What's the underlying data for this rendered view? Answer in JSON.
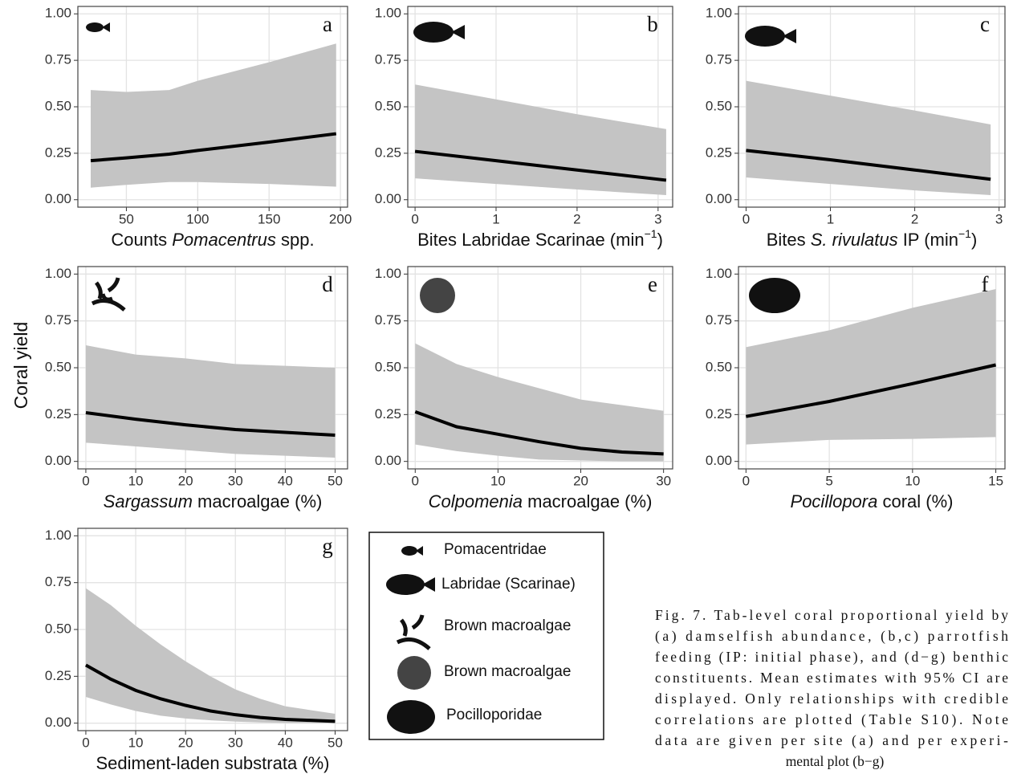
{
  "ylabel": "Coral yield",
  "chart_data": [
    {
      "type": "line",
      "label": "a",
      "xlabel": [
        {
          "text": "Counts "
        },
        {
          "text": "Pomacentrus",
          "style": "italic"
        },
        {
          "text": " spp."
        }
      ],
      "x": [
        25,
        50,
        80,
        100,
        150,
        197
      ],
      "values": [
        0.21,
        0.225,
        0.245,
        0.265,
        0.31,
        0.355
      ],
      "lower": [
        0.065,
        0.08,
        0.095,
        0.095,
        0.085,
        0.07
      ],
      "upper": [
        0.59,
        0.58,
        0.59,
        0.64,
        0.74,
        0.84
      ],
      "color": "#000000",
      "band_color": "#c4c4c4",
      "grid": true,
      "xlim": [
        16,
        205
      ],
      "xticks": [
        50,
        100,
        150,
        200
      ],
      "ylim": [
        -0.04,
        1.04
      ],
      "yticks": [
        {
          "value": 0,
          "label": "0.00"
        },
        {
          "value": 0.25,
          "label": "0.25"
        },
        {
          "value": 0.5,
          "label": "0.50"
        },
        {
          "value": 0.75,
          "label": "0.75"
        },
        {
          "value": 1,
          "label": "1.00"
        }
      ]
    },
    {
      "type": "line",
      "label": "b",
      "xlabel": [
        {
          "text": "Bites Labridae Scarinae (min"
        },
        {
          "text": "−1",
          "style": "sup"
        },
        {
          "text": ")"
        }
      ],
      "x": [
        0,
        1,
        2,
        3.1
      ],
      "values": [
        0.26,
        0.21,
        0.16,
        0.105
      ],
      "lower": [
        0.115,
        0.085,
        0.055,
        0.025
      ],
      "upper": [
        0.62,
        0.54,
        0.46,
        0.38
      ],
      "color": "#000000",
      "band_color": "#c4c4c4",
      "grid": true,
      "xlim": [
        -0.09,
        3.18
      ],
      "xticks": [
        0,
        1,
        2,
        3
      ],
      "ylim": [
        -0.04,
        1.04
      ],
      "yticks": [
        {
          "value": 0,
          "label": "0.00"
        },
        {
          "value": 0.25,
          "label": "0.25"
        },
        {
          "value": 0.5,
          "label": "0.50"
        },
        {
          "value": 0.75,
          "label": "0.75"
        },
        {
          "value": 1,
          "label": "1.00"
        }
      ]
    },
    {
      "type": "line",
      "label": "c",
      "xlabel": [
        {
          "text": "Bites "
        },
        {
          "text": "S. rivulatus",
          "style": "italic"
        },
        {
          "text": " IP (min"
        },
        {
          "text": "−1",
          "style": "sup"
        },
        {
          "text": ")"
        }
      ],
      "x": [
        0,
        1,
        2,
        2.9
      ],
      "values": [
        0.265,
        0.215,
        0.16,
        0.11
      ],
      "lower": [
        0.12,
        0.085,
        0.05,
        0.025
      ],
      "upper": [
        0.64,
        0.56,
        0.48,
        0.405
      ],
      "color": "#000000",
      "band_color": "#c4c4c4",
      "grid": true,
      "xlim": [
        -0.09,
        3.07
      ],
      "xticks": [
        0,
        1,
        2,
        3
      ],
      "ylim": [
        -0.04,
        1.04
      ],
      "yticks": [
        {
          "value": 0,
          "label": "0.00"
        },
        {
          "value": 0.25,
          "label": "0.25"
        },
        {
          "value": 0.5,
          "label": "0.50"
        },
        {
          "value": 0.75,
          "label": "0.75"
        },
        {
          "value": 1,
          "label": "1.00"
        }
      ]
    },
    {
      "type": "line",
      "label": "d",
      "xlabel": [
        {
          "text": "Sargassum",
          "style": "italic"
        },
        {
          "text": " macroalgae (%)"
        }
      ],
      "x": [
        0,
        10,
        20,
        30,
        40,
        50
      ],
      "values": [
        0.26,
        0.225,
        0.195,
        0.17,
        0.155,
        0.14
      ],
      "lower": [
        0.1,
        0.08,
        0.06,
        0.04,
        0.03,
        0.02
      ],
      "upper": [
        0.62,
        0.57,
        0.55,
        0.52,
        0.51,
        0.5
      ],
      "color": "#000000",
      "band_color": "#c4c4c4",
      "grid": true,
      "xlim": [
        -1.6,
        52.5
      ],
      "xticks": [
        0,
        10,
        20,
        30,
        40,
        50
      ],
      "ylim": [
        -0.04,
        1.04
      ],
      "yticks": [
        {
          "value": 0,
          "label": "0.00"
        },
        {
          "value": 0.25,
          "label": "0.25"
        },
        {
          "value": 0.5,
          "label": "0.50"
        },
        {
          "value": 0.75,
          "label": "0.75"
        },
        {
          "value": 1,
          "label": "1.00"
        }
      ]
    },
    {
      "type": "line",
      "label": "e",
      "xlabel": [
        {
          "text": "Colpomenia",
          "style": "italic"
        },
        {
          "text": " macroalgae (%)"
        }
      ],
      "x": [
        0,
        5,
        10,
        15,
        20,
        25,
        30
      ],
      "values": [
        0.265,
        0.185,
        0.145,
        0.105,
        0.07,
        0.05,
        0.04
      ],
      "lower": [
        0.09,
        0.055,
        0.03,
        0.01,
        0.005,
        0,
        0
      ],
      "upper": [
        0.63,
        0.52,
        0.45,
        0.39,
        0.33,
        0.3,
        0.27
      ],
      "color": "#000000",
      "band_color": "#c4c4c4",
      "grid": true,
      "xlim": [
        -0.9,
        31.1
      ],
      "xticks": [
        0,
        10,
        20,
        30
      ],
      "ylim": [
        -0.04,
        1.04
      ],
      "yticks": [
        {
          "value": 0,
          "label": "0.00"
        },
        {
          "value": 0.25,
          "label": "0.25"
        },
        {
          "value": 0.5,
          "label": "0.50"
        },
        {
          "value": 0.75,
          "label": "0.75"
        },
        {
          "value": 1,
          "label": "1.00"
        }
      ]
    },
    {
      "type": "line",
      "label": "f",
      "xlabel": [
        {
          "text": "Pocillopora",
          "style": "italic"
        },
        {
          "text": " coral  (%)"
        }
      ],
      "x": [
        0,
        5,
        10,
        15
      ],
      "values": [
        0.24,
        0.32,
        0.415,
        0.515
      ],
      "lower": [
        0.09,
        0.115,
        0.12,
        0.13
      ],
      "upper": [
        0.61,
        0.7,
        0.82,
        0.92
      ],
      "color": "#000000",
      "band_color": "#c4c4c4",
      "grid": true,
      "xlim": [
        -0.45,
        15.55
      ],
      "xticks": [
        0,
        5,
        10,
        15
      ],
      "ylim": [
        -0.04,
        1.04
      ],
      "yticks": [
        {
          "value": 0,
          "label": "0.00"
        },
        {
          "value": 0.25,
          "label": "0.25"
        },
        {
          "value": 0.5,
          "label": "0.50"
        },
        {
          "value": 0.75,
          "label": "0.75"
        },
        {
          "value": 1,
          "label": "1.00"
        }
      ]
    },
    {
      "type": "line",
      "label": "g",
      "xlabel": [
        {
          "text": "Sediment-laden substrata (%)"
        }
      ],
      "x": [
        0,
        5,
        10,
        15,
        20,
        25,
        30,
        35,
        40,
        45,
        50
      ],
      "values": [
        0.31,
        0.235,
        0.175,
        0.13,
        0.095,
        0.065,
        0.045,
        0.03,
        0.02,
        0.015,
        0.01
      ],
      "lower": [
        0.14,
        0.1,
        0.065,
        0.04,
        0.025,
        0.015,
        0.008,
        0.004,
        0.002,
        0.001,
        0
      ],
      "upper": [
        0.72,
        0.63,
        0.52,
        0.42,
        0.33,
        0.25,
        0.18,
        0.13,
        0.09,
        0.07,
        0.05
      ],
      "color": "#000000",
      "band_color": "#c4c4c4",
      "grid": true,
      "xlim": [
        -1.6,
        52.5
      ],
      "xticks": [
        0,
        10,
        20,
        30,
        40,
        50
      ],
      "ylim": [
        -0.04,
        1.04
      ],
      "yticks": [
        {
          "value": 0,
          "label": "0.00"
        },
        {
          "value": 0.25,
          "label": "0.25"
        },
        {
          "value": 0.5,
          "label": "0.50"
        },
        {
          "value": 0.75,
          "label": "0.75"
        },
        {
          "value": 1,
          "label": "1.00"
        }
      ]
    }
  ],
  "legend": {
    "items": [
      "Pomacentridae",
      "Labridae (Scarinae)",
      "Brown macroalgae",
      "Brown macroalgae",
      "Pocilloporidae"
    ]
  },
  "caption": [
    "Fig. 7. Tab-level coral proportional yield by",
    "(a) damselfish abundance, (b,c) parrotfish",
    "feeding (IP: initial phase), and (d−g) benthic",
    "constituents. Mean estimates with 95% CI are",
    "displayed. Only relationships with credible",
    "correlations are plotted (Table S10). Note",
    "data are given per site (a) and per experi-",
    "mental plot (b−g)"
  ]
}
